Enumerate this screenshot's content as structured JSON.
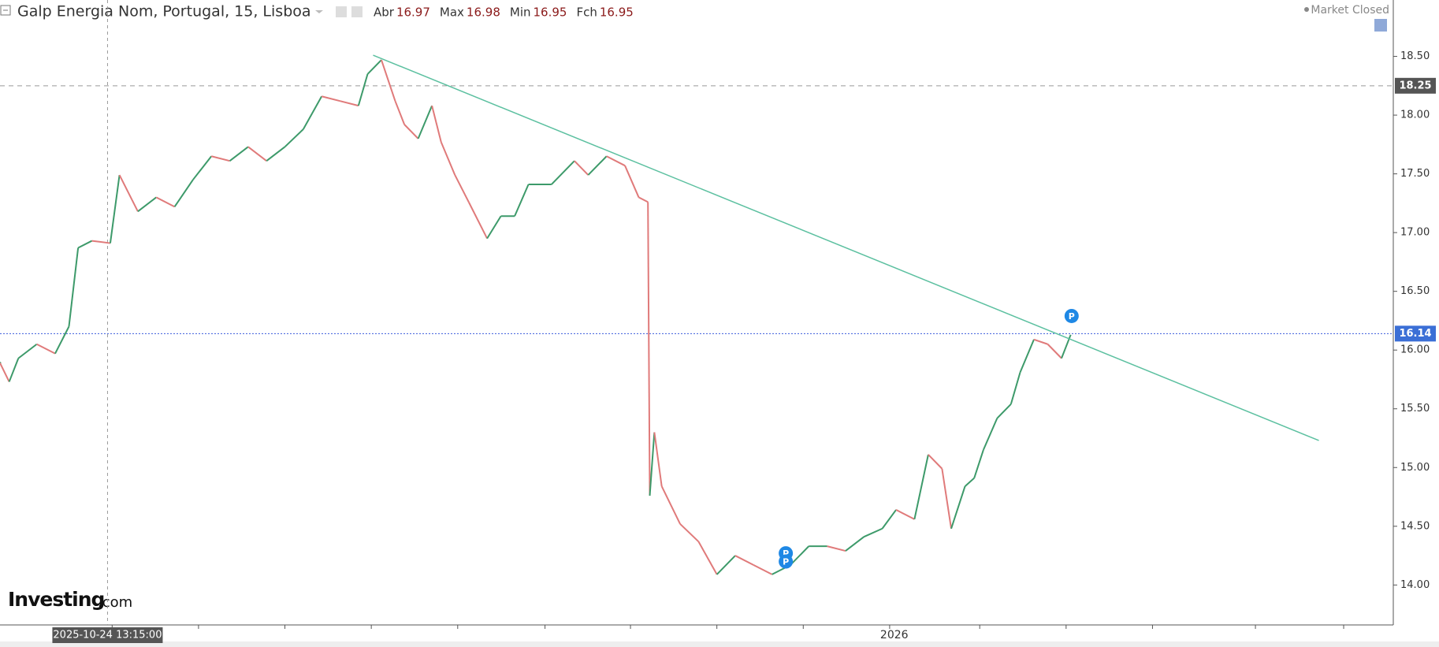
{
  "chart_data": {
    "type": "candle-line",
    "title": "Galp Energia Nom, Portugal, 15, Lisboa",
    "ohlc": [
      {
        "label": "Abr",
        "value": 16.97
      },
      {
        "label": "Max",
        "value": 16.98
      },
      {
        "label": "Min",
        "value": 16.95
      },
      {
        "label": "Fch",
        "value": 16.95
      }
    ],
    "status": "Market Closed",
    "logo": {
      "main": "Investing",
      "suffix": ".com"
    },
    "x": [
      0,
      1,
      2,
      4,
      6,
      7.5,
      8.5,
      10,
      12,
      13,
      15,
      17,
      19,
      21,
      23,
      25,
      27,
      29,
      31,
      33,
      35,
      37,
      39,
      40,
      41.5,
      43,
      44,
      45.5,
      47,
      48,
      49.5,
      51,
      53,
      54.5,
      56,
      57.5,
      60,
      62.5,
      64,
      66,
      68,
      69.5,
      70.5,
      70.7,
      71.2,
      72,
      74,
      76,
      78,
      80,
      82,
      84,
      86,
      88,
      90,
      92,
      94,
      96,
      97.5,
      99.5,
      101,
      102.5,
      103.5,
      105,
      106,
      107,
      108.5,
      110,
      111,
      112.5,
      114,
      115.5,
      116.5
    ],
    "series": [
      {
        "up_color": "#3d9a6a",
        "down_color": "#e07a7a",
        "values": [
          15.89,
          15.73,
          15.93,
          16.05,
          15.97,
          16.2,
          16.87,
          16.93,
          16.91,
          17.49,
          17.18,
          17.3,
          17.22,
          17.45,
          17.65,
          17.61,
          17.73,
          17.61,
          17.73,
          17.88,
          18.16,
          18.12,
          18.08,
          18.35,
          18.47,
          18.12,
          17.92,
          17.8,
          18.08,
          17.77,
          17.49,
          17.26,
          16.95,
          17.14,
          17.14,
          17.41,
          17.41,
          17.61,
          17.49,
          17.65,
          17.57,
          17.3,
          17.26,
          14.76,
          15.3,
          14.84,
          14.52,
          14.37,
          14.09,
          14.25,
          14.17,
          14.09,
          14.17,
          14.33,
          14.33,
          14.29,
          14.41,
          14.48,
          14.64,
          14.56,
          15.11,
          14.99,
          14.48,
          14.84,
          14.91,
          15.15,
          15.42,
          15.54,
          15.81,
          16.09,
          16.05,
          15.93,
          16.13
        ]
      }
    ],
    "trendline": {
      "x": [
        40.6,
        143.5
      ],
      "values": [
        18.51,
        15.23
      ],
      "color": "#5cc0a0"
    },
    "price_lines": [
      {
        "value": 18.25,
        "label": "18.25",
        "color": "#999999",
        "style": "dashed"
      },
      {
        "value": 16.14,
        "label": "16.14",
        "color": "#3b5bdb",
        "style": "dotted"
      }
    ],
    "markers": [
      {
        "label": "P",
        "x": 85.5,
        "y": 14.27
      },
      {
        "label": "P",
        "x": 85.5,
        "y": 14.2
      },
      {
        "label": "P",
        "x": 116.6,
        "y": 16.29
      }
    ],
    "crosshair": {
      "x": 11.7,
      "label": "2025-10-24 13:15:00"
    },
    "xlim": [
      0,
      151.6
    ],
    "ylim": [
      13.66,
      18.98
    ],
    "x_tick_marks": [
      12.2,
      21.6,
      31,
      40.4,
      49.8,
      59.3,
      68.6,
      78,
      87.4,
      96.8,
      106.6,
      116,
      125.4,
      136.6,
      146.2
    ],
    "xticks": [
      {
        "value": 97.3,
        "label": "2026"
      }
    ],
    "yticks": [
      {
        "value": 14,
        "label": "14.00"
      },
      {
        "value": 14.5,
        "label": "14.50"
      },
      {
        "value": 15,
        "label": "15.00"
      },
      {
        "value": 15.5,
        "label": "15.50"
      },
      {
        "value": 16,
        "label": "16.00"
      },
      {
        "value": 16.5,
        "label": "16.50"
      },
      {
        "value": 17,
        "label": "17.00"
      },
      {
        "value": 17.5,
        "label": "17.50"
      },
      {
        "value": 18,
        "label": "18.00"
      },
      {
        "value": 18.5,
        "label": "18.50"
      }
    ]
  }
}
